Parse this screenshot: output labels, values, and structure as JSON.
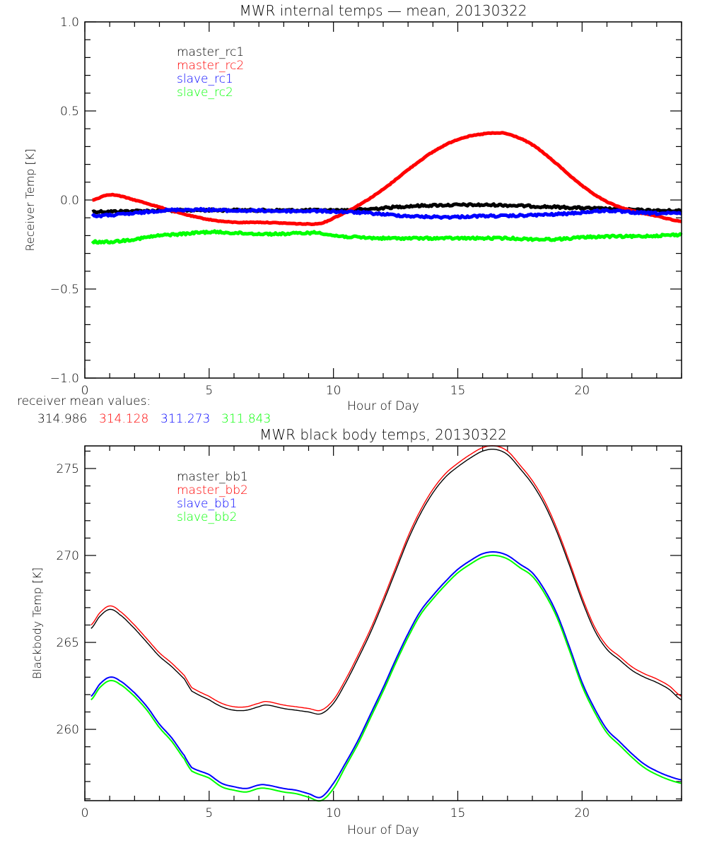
{
  "chart_data": [
    {
      "type": "line",
      "title": "MWR internal temps — mean, 20130322",
      "xlabel": "Hour of Day",
      "ylabel": "Receiver Temp [K]",
      "xlim": [
        0,
        24
      ],
      "ylim": [
        -1.0,
        1.0
      ],
      "xticks": [
        0,
        5,
        10,
        15,
        20
      ],
      "xtick_labels": [
        "0",
        "5",
        "10",
        "15",
        "20"
      ],
      "yticks": [
        -1.0,
        -0.5,
        0.0,
        0.5,
        1.0
      ],
      "ytick_labels": [
        "−1.0",
        "−0.5",
        "0.0",
        "0.5",
        "1.0"
      ],
      "grid": false,
      "legend_position": "top-left",
      "x": [
        0.3,
        1,
        2,
        3,
        4,
        5,
        6,
        7,
        8,
        9,
        9.5,
        10,
        11,
        12,
        13,
        14,
        15,
        16,
        16.5,
        17,
        18,
        19,
        20,
        21,
        22,
        23,
        24
      ],
      "series": [
        {
          "name": "master_rc1",
          "color": "#000000",
          "noisy": true,
          "values": [
            -0.065,
            -0.065,
            -0.062,
            -0.06,
            -0.058,
            -0.057,
            -0.057,
            -0.058,
            -0.058,
            -0.058,
            -0.058,
            -0.058,
            -0.055,
            -0.045,
            -0.035,
            -0.03,
            -0.028,
            -0.028,
            -0.028,
            -0.03,
            -0.035,
            -0.04,
            -0.045,
            -0.05,
            -0.055,
            -0.06,
            -0.06
          ]
        },
        {
          "name": "master_rc2",
          "color": "#ff0000",
          "noisy": false,
          "values": [
            0.0,
            0.03,
            0.0,
            -0.04,
            -0.08,
            -0.11,
            -0.125,
            -0.125,
            -0.13,
            -0.135,
            -0.13,
            -0.1,
            -0.03,
            0.06,
            0.17,
            0.27,
            0.34,
            0.37,
            0.375,
            0.37,
            0.31,
            0.2,
            0.08,
            -0.01,
            -0.06,
            -0.09,
            -0.12
          ]
        },
        {
          "name": "slave_rc1",
          "color": "#0000ff",
          "noisy": true,
          "values": [
            -0.09,
            -0.085,
            -0.075,
            -0.06,
            -0.055,
            -0.055,
            -0.06,
            -0.06,
            -0.062,
            -0.062,
            -0.062,
            -0.065,
            -0.07,
            -0.08,
            -0.09,
            -0.095,
            -0.095,
            -0.09,
            -0.09,
            -0.09,
            -0.085,
            -0.08,
            -0.07,
            -0.06,
            -0.07,
            -0.075,
            -0.075
          ]
        },
        {
          "name": "slave_rc2",
          "color": "#00ff00",
          "noisy": true,
          "values": [
            -0.235,
            -0.235,
            -0.22,
            -0.2,
            -0.19,
            -0.18,
            -0.185,
            -0.19,
            -0.19,
            -0.185,
            -0.185,
            -0.2,
            -0.21,
            -0.215,
            -0.215,
            -0.215,
            -0.215,
            -0.215,
            -0.215,
            -0.215,
            -0.22,
            -0.22,
            -0.21,
            -0.205,
            -0.205,
            -0.2,
            -0.195
          ]
        }
      ],
      "annotation": {
        "label": "receiver mean values:",
        "values": [
          {
            "text": "314.986",
            "color": "#000000"
          },
          {
            "text": "314.128",
            "color": "#ff0000"
          },
          {
            "text": "311.273",
            "color": "#0000ff"
          },
          {
            "text": "311.843",
            "color": "#00ff00"
          }
        ]
      }
    },
    {
      "type": "line",
      "title": "MWR black body temps, 20130322",
      "xlabel": "Hour of Day",
      "ylabel": "Blackbody Temp [K]",
      "xlim": [
        0,
        24
      ],
      "ylim": [
        255.9,
        276.3
      ],
      "xticks": [
        0,
        5,
        10,
        15,
        20
      ],
      "xtick_labels": [
        "0",
        "5",
        "10",
        "15",
        "20"
      ],
      "yticks": [
        260,
        265,
        270,
        275
      ],
      "ytick_labels": [
        "260",
        "265",
        "270",
        "275"
      ],
      "grid": false,
      "legend_position": "top-left",
      "x": [
        0.25,
        0.6,
        1.0,
        1.4,
        2,
        2.5,
        3,
        3.5,
        4,
        4.3,
        5,
        5.5,
        6,
        6.5,
        7,
        7.3,
        8,
        8.5,
        9,
        9.5,
        10,
        10.5,
        11,
        11.5,
        12,
        12.5,
        13,
        13.5,
        14,
        14.5,
        15,
        15.5,
        16,
        16.5,
        17,
        17.5,
        18,
        18.5,
        19,
        19.5,
        20,
        20.5,
        21,
        21.5,
        22,
        22.5,
        23,
        23.5,
        24
      ],
      "series": [
        {
          "name": "master_bb1",
          "color": "#000000",
          "values": [
            265.8,
            266.5,
            266.9,
            266.6,
            265.8,
            265.0,
            264.2,
            263.6,
            262.9,
            262.2,
            261.7,
            261.3,
            261.1,
            261.1,
            261.3,
            261.4,
            261.2,
            261.1,
            261.0,
            260.9,
            261.5,
            262.7,
            264.1,
            265.6,
            267.3,
            269.1,
            270.9,
            272.4,
            273.6,
            274.5,
            275.1,
            275.6,
            276.0,
            276.1,
            275.8,
            275.0,
            274.1,
            272.9,
            271.3,
            269.4,
            267.4,
            265.7,
            264.6,
            264.0,
            263.4,
            263.0,
            262.7,
            262.3,
            261.7
          ]
        },
        {
          "name": "master_bb2",
          "color": "#ff0000",
          "values": [
            266.0,
            266.7,
            267.1,
            266.8,
            266.0,
            265.2,
            264.4,
            263.8,
            263.1,
            262.4,
            261.9,
            261.5,
            261.3,
            261.3,
            261.5,
            261.6,
            261.4,
            261.3,
            261.2,
            261.1,
            261.7,
            262.9,
            264.3,
            265.8,
            267.5,
            269.3,
            271.1,
            272.6,
            273.8,
            274.7,
            275.3,
            275.8,
            276.2,
            276.3,
            276.0,
            275.2,
            274.3,
            273.1,
            271.5,
            269.6,
            267.6,
            265.9,
            264.8,
            264.2,
            263.6,
            263.2,
            262.9,
            262.5,
            261.9
          ]
        },
        {
          "name": "slave_bb1",
          "color": "#0000ff",
          "values": [
            261.9,
            262.6,
            263.0,
            262.8,
            262.1,
            261.3,
            260.3,
            259.5,
            258.5,
            257.8,
            257.4,
            256.9,
            256.7,
            256.6,
            256.8,
            256.8,
            256.6,
            256.5,
            256.3,
            256.1,
            256.9,
            258.1,
            259.4,
            260.9,
            262.4,
            264.0,
            265.5,
            266.8,
            267.7,
            268.5,
            269.2,
            269.7,
            270.1,
            270.2,
            270.0,
            269.5,
            269.0,
            268.0,
            266.6,
            264.7,
            262.7,
            261.2,
            260.0,
            259.3,
            258.6,
            258.0,
            257.6,
            257.3,
            257.1
          ]
        },
        {
          "name": "slave_bb2",
          "color": "#00ff00",
          "values": [
            261.7,
            262.4,
            262.8,
            262.6,
            261.9,
            261.1,
            260.1,
            259.3,
            258.3,
            257.6,
            257.2,
            256.7,
            256.5,
            256.4,
            256.6,
            256.6,
            256.4,
            256.3,
            256.1,
            255.9,
            256.6,
            257.9,
            259.2,
            260.7,
            262.2,
            263.8,
            265.3,
            266.6,
            267.5,
            268.3,
            269.0,
            269.5,
            269.9,
            270.0,
            269.8,
            269.3,
            268.8,
            267.8,
            266.4,
            264.5,
            262.5,
            261.0,
            259.8,
            259.1,
            258.4,
            257.8,
            257.4,
            257.1,
            256.9
          ]
        }
      ]
    }
  ]
}
